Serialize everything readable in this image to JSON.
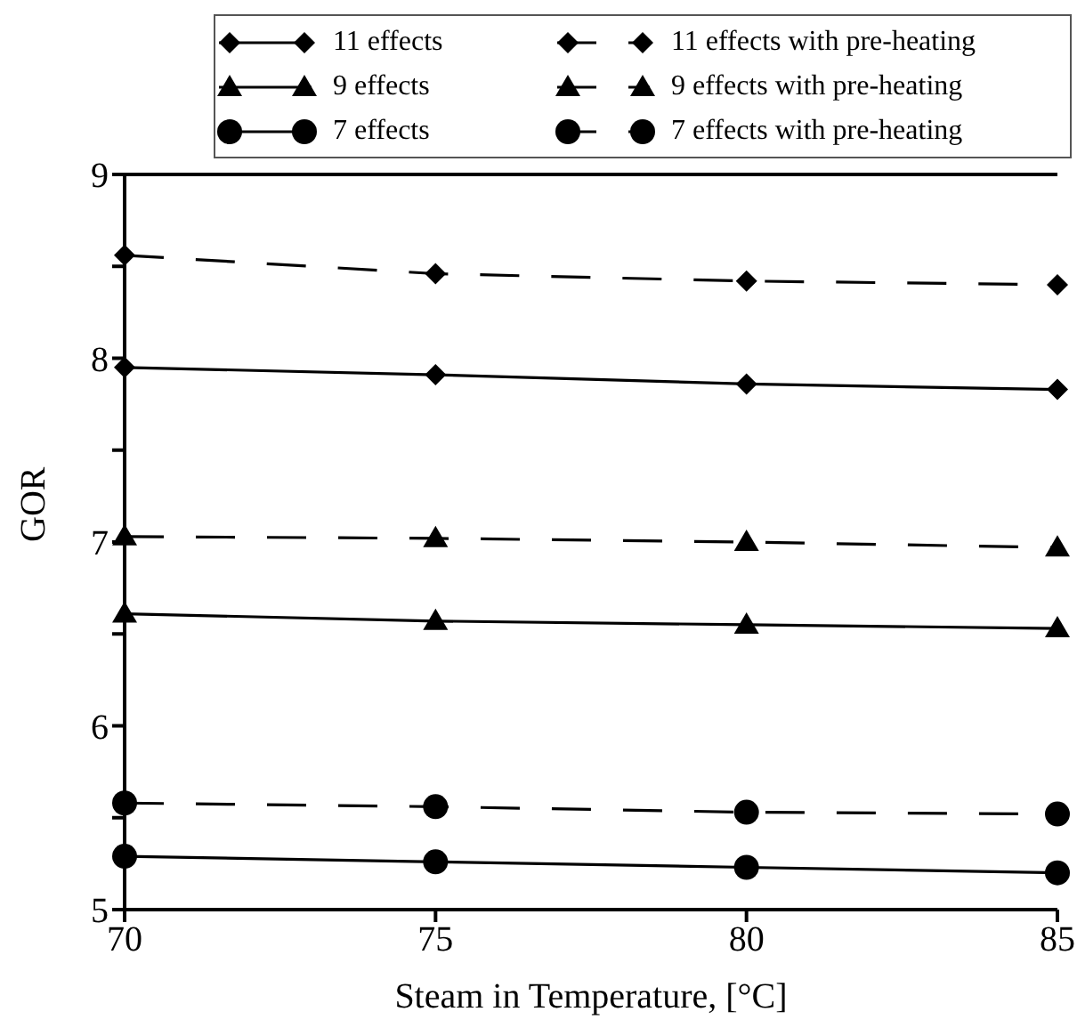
{
  "chart_data": {
    "type": "line",
    "xlabel": "Steam in Temperature, [°C]",
    "ylabel": "GOR",
    "x": [
      70,
      75,
      80,
      85
    ],
    "xlim": [
      70,
      85
    ],
    "xticks": [
      70,
      75,
      80,
      85
    ],
    "ylim": [
      5,
      9
    ],
    "yticks": [
      5,
      {
        "value": 5.5,
        "label": null
      },
      6,
      {
        "value": 6.5,
        "label": null
      },
      7,
      {
        "value": 7.5,
        "label": null
      },
      8,
      {
        "value": 8.5,
        "label": null
      },
      9
    ],
    "legend": "top",
    "series": [
      {
        "name": "11 effects",
        "color": "#000000",
        "marker": "diamond",
        "line_style": "solid",
        "values": [
          7.95,
          7.91,
          7.86,
          7.83
        ]
      },
      {
        "name": "11 effects with pre-heating",
        "color": "#000000",
        "marker": "diamond",
        "line_style": "dashed",
        "values": [
          8.56,
          8.46,
          8.42,
          8.4
        ]
      },
      {
        "name": "9 effects",
        "color": "#000000",
        "marker": "triangle",
        "line_style": "solid",
        "values": [
          6.61,
          6.57,
          6.55,
          6.53
        ]
      },
      {
        "name": "9 effects with pre-heating",
        "color": "#000000",
        "marker": "triangle",
        "line_style": "dashed",
        "values": [
          7.03,
          7.02,
          7.0,
          6.97
        ]
      },
      {
        "name": "7 effects",
        "color": "#000000",
        "marker": "circle",
        "line_style": "solid",
        "values": [
          5.29,
          5.26,
          5.23,
          5.2
        ]
      },
      {
        "name": "7 effects with pre-heating",
        "color": "#000000",
        "marker": "circle",
        "line_style": "dashed",
        "values": [
          5.58,
          5.56,
          5.53,
          5.52
        ]
      }
    ]
  }
}
